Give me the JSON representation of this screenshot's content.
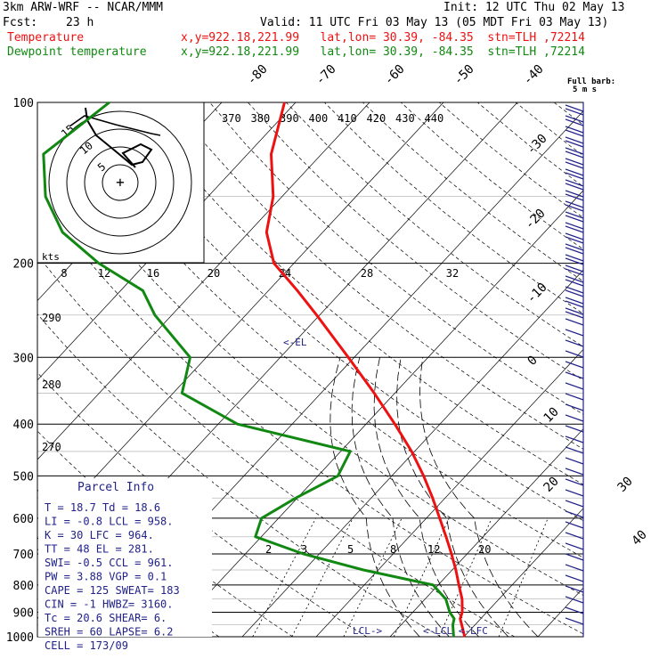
{
  "header": {
    "model": "3km ARW-WRF -- NCAR/MMM",
    "init": "Init: 12 UTC Thu 02 May 13",
    "fcst_label": "Fcst:",
    "fcst_value": "23 h",
    "valid": "Valid: 11 UTC Fri 03 May 13 (05 MDT Fri 03 May 13)",
    "temp_label": "Temperature",
    "dew_label": "Dewpoint temperature",
    "temp_loc": "x,y=922.18,221.99   lat,lon= 30.39, -84.35  stn=TLH ,72214",
    "dew_loc": "x,y=922.18,221.99   lat,lon= 30.39, -84.35  stn=TLH ,72214"
  },
  "colors": {
    "temperature": "#ee1111",
    "dewpoint": "#118811",
    "info": "#222288",
    "black": "#000000"
  },
  "pressure_levels": [
    "100",
    "200",
    "300",
    "400",
    "500",
    "600",
    "700",
    "800",
    "900",
    "1000"
  ],
  "skewt_temperature_labels": [
    "-80",
    "-70",
    "-60",
    "-50",
    "-40",
    "-30",
    "-20",
    "-10",
    "0",
    "10",
    "20",
    "30",
    "40"
  ],
  "theta_labels": [
    "370",
    "380",
    "390",
    "400",
    "410",
    "420",
    "430",
    "440"
  ],
  "mixing_ratio_labels": [
    "2",
    "3",
    "5",
    "8",
    "12",
    "20"
  ],
  "theta_e_left_labels": [
    "290",
    "280",
    "270"
  ],
  "hodo_speed_labels": [
    "8",
    "12",
    "16",
    "20",
    "24",
    "28",
    "32"
  ],
  "hodo_ring_labels": [
    "5",
    "10",
    "15"
  ],
  "hodo_units": "kts",
  "barb_legend": [
    "Full barb:",
    "5 m s"
  ],
  "marker_labels": {
    "el": "EL",
    "lcl": "LCL",
    "lcl_lfc": "LCL",
    "lfc": "LFC"
  },
  "parcel_info": {
    "title": "Parcel Info",
    "rows": [
      "T  =   18.7  Td =  18.6",
      "LI =   -0.8  LCL =  958.",
      "K  =     30  LFC =  964.",
      "TT =     48  EL  =  281.",
      "SWI=   -0.5  CCL =  961.",
      "PW =   3.88  VGP =   0.1",
      "CAPE =  125  SWEAT=  183",
      "CIN  =   -1  HWBZ= 3160.",
      "Tc   = 20.6  SHEAR=   6.",
      "SREH =   60  LAPSE=  6.2",
      "CELL = 173/09"
    ]
  },
  "chart_data": {
    "type": "line",
    "title": "",
    "ylabel": "",
    "ylim": [
      1000,
      100
    ],
    "log_scale_y": true,
    "series": [
      {
        "name": "Temperature",
        "color": "#ee1111",
        "pressure": [
          1000,
          950,
          925,
          900,
          850,
          800,
          750,
          700,
          650,
          600,
          550,
          500,
          450,
          400,
          350,
          300,
          250,
          225,
          200,
          175,
          150,
          125,
          100
        ],
        "values": [
          20.1,
          18.2,
          17.2,
          16.7,
          15.0,
          12.8,
          10.5,
          7.9,
          5.0,
          1.8,
          -1.7,
          -5.7,
          -10.4,
          -16.1,
          -22.8,
          -30.8,
          -40.4,
          -46.1,
          -52.7,
          -57.6,
          -61.2,
          -66.8,
          -71.5
        ]
      },
      {
        "name": "Dewpoint temperature",
        "color": "#118811",
        "pressure": [
          1000,
          950,
          925,
          900,
          850,
          800,
          750,
          700,
          650,
          600,
          550,
          500,
          450,
          400,
          350,
          300,
          250,
          225,
          200,
          175,
          150,
          125,
          100
        ],
        "values": [
          18.6,
          17.0,
          16.4,
          15.0,
          12.8,
          9.3,
          -2.0,
          -12.1,
          -20.8,
          -22.3,
          -20.2,
          -17.3,
          -18.7,
          -37.4,
          -48.8,
          -52.2,
          -62.3,
          -67.0,
          -76.4,
          -85.2,
          -92.0,
          -97.6,
          -95.2
        ]
      }
    ]
  }
}
